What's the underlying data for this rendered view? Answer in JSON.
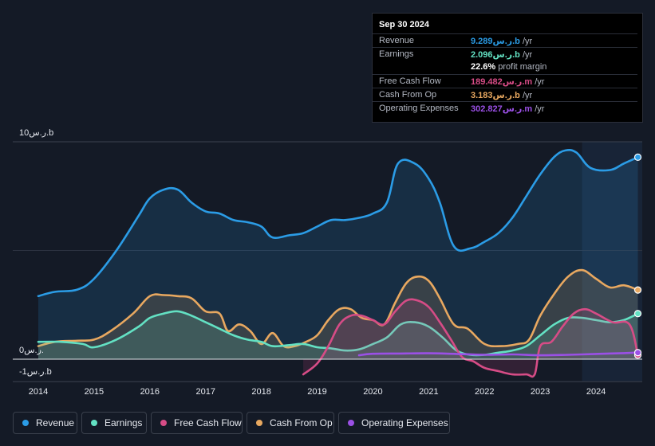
{
  "tooltip": {
    "date": "Sep 30 2024",
    "rows": [
      {
        "label": "Revenue",
        "value": "9.289ر.س.b",
        "unit": " /yr",
        "color": "#2b9ce6"
      },
      {
        "label": "Earnings",
        "value": "2.096ر.س.b",
        "unit": " /yr",
        "color": "#63e1c3"
      },
      {
        "label": "",
        "value": "22.6%",
        "unit": " profit margin",
        "color": "#ffffff"
      },
      {
        "label": "Free Cash Flow",
        "value": "189.482ر.س.m",
        "unit": " /yr",
        "color": "#d64c86"
      },
      {
        "label": "Cash From Op",
        "value": "3.183ر.س.b",
        "unit": " /yr",
        "color": "#e8a860"
      },
      {
        "label": "Operating Expenses",
        "value": "302.827ر.س.m",
        "unit": " /yr",
        "color": "#9b50e6"
      }
    ]
  },
  "legend": [
    {
      "label": "Revenue",
      "color": "#2b9ce6"
    },
    {
      "label": "Earnings",
      "color": "#63e1c3"
    },
    {
      "label": "Free Cash Flow",
      "color": "#d64c86"
    },
    {
      "label": "Cash From Op",
      "color": "#e8a860"
    },
    {
      "label": "Operating Expenses",
      "color": "#9b50e6"
    }
  ],
  "chart_data": {
    "type": "area",
    "ylabel_top": "10ر.س.b",
    "ylabel_zero": "0ر.س.",
    "ylabel_bottom": "-1ر.س.b",
    "ylim": [
      -1,
      10
    ],
    "xlim": [
      2014,
      2024.8
    ],
    "xticks": [
      "2014",
      "2015",
      "2016",
      "2017",
      "2018",
      "2019",
      "2020",
      "2021",
      "2022",
      "2023",
      "2024"
    ],
    "highlight_from": 2023.75,
    "series": [
      {
        "name": "Revenue",
        "color": "#2b9ce6",
        "fill": true,
        "x": [
          2014,
          2014.3,
          2014.7,
          2015,
          2015.4,
          2015.8,
          2016,
          2016.25,
          2016.5,
          2016.75,
          2017,
          2017.25,
          2017.5,
          2017.75,
          2018,
          2018.2,
          2018.5,
          2018.75,
          2019,
          2019.25,
          2019.5,
          2019.75,
          2020,
          2020.25,
          2020.45,
          2020.75,
          2021,
          2021.2,
          2021.45,
          2021.75,
          2022,
          2022.25,
          2022.5,
          2022.75,
          2023,
          2023.25,
          2023.45,
          2023.65,
          2023.9,
          2024.25,
          2024.5,
          2024.75
        ],
        "values": [
          2.9,
          3.1,
          3.2,
          3.7,
          5.0,
          6.6,
          7.4,
          7.8,
          7.8,
          7.2,
          6.8,
          6.7,
          6.4,
          6.3,
          6.1,
          5.6,
          5.7,
          5.8,
          6.1,
          6.4,
          6.4,
          6.5,
          6.7,
          7.2,
          9.0,
          9.0,
          8.3,
          7.2,
          5.2,
          5.1,
          5.4,
          5.8,
          6.5,
          7.5,
          8.5,
          9.3,
          9.6,
          9.5,
          8.8,
          8.7,
          9.0,
          9.289
        ]
      },
      {
        "name": "Cash From Op",
        "color": "#e8a860",
        "fill": true,
        "x": [
          2014,
          2014.3,
          2014.7,
          2015,
          2015.3,
          2015.7,
          2016,
          2016.25,
          2016.5,
          2016.75,
          2017,
          2017.25,
          2017.4,
          2017.6,
          2017.8,
          2018,
          2018.2,
          2018.4,
          2018.6,
          2018.8,
          2019,
          2019.2,
          2019.4,
          2019.6,
          2019.8,
          2020,
          2020.2,
          2020.4,
          2020.6,
          2020.8,
          2021,
          2021.2,
          2021.45,
          2021.7,
          2022,
          2022.3,
          2022.6,
          2022.8,
          2023,
          2023.25,
          2023.5,
          2023.75,
          2024,
          2024.25,
          2024.5,
          2024.75
        ],
        "values": [
          0.6,
          0.8,
          0.85,
          0.9,
          1.3,
          2.1,
          2.9,
          2.95,
          2.9,
          2.8,
          2.2,
          2.1,
          1.3,
          1.6,
          1.3,
          0.7,
          1.2,
          0.6,
          0.6,
          0.8,
          1.1,
          1.8,
          2.3,
          2.3,
          1.9,
          1.8,
          1.6,
          2.6,
          3.5,
          3.8,
          3.6,
          2.8,
          1.6,
          1.4,
          0.7,
          0.6,
          0.7,
          0.9,
          2.0,
          3.0,
          3.8,
          4.1,
          3.7,
          3.3,
          3.4,
          3.183
        ]
      },
      {
        "name": "Earnings",
        "color": "#63e1c3",
        "fill": true,
        "x": [
          2014,
          2014.4,
          2014.8,
          2015,
          2015.4,
          2015.8,
          2016,
          2016.25,
          2016.5,
          2016.75,
          2017,
          2017.25,
          2017.5,
          2017.75,
          2018,
          2018.2,
          2018.5,
          2018.75,
          2019,
          2019.25,
          2019.5,
          2019.75,
          2020,
          2020.25,
          2020.5,
          2020.75,
          2021,
          2021.25,
          2021.5,
          2021.75,
          2022,
          2022.25,
          2022.5,
          2022.75,
          2023,
          2023.25,
          2023.5,
          2023.75,
          2024,
          2024.25,
          2024.5,
          2024.75
        ],
        "values": [
          0.8,
          0.8,
          0.7,
          0.55,
          0.9,
          1.5,
          1.9,
          2.1,
          2.2,
          2.0,
          1.7,
          1.4,
          1.1,
          0.9,
          0.8,
          0.6,
          0.65,
          0.7,
          0.55,
          0.5,
          0.4,
          0.45,
          0.7,
          1.0,
          1.6,
          1.7,
          1.5,
          1.0,
          0.4,
          0.2,
          0.2,
          0.3,
          0.4,
          0.6,
          1.1,
          1.6,
          1.9,
          1.9,
          1.8,
          1.7,
          1.8,
          2.096
        ]
      },
      {
        "name": "Free Cash Flow",
        "color": "#d64c86",
        "fill": true,
        "x": [
          2018.75,
          2019,
          2019.2,
          2019.4,
          2019.6,
          2019.8,
          2020,
          2020.2,
          2020.4,
          2020.6,
          2020.8,
          2021,
          2021.2,
          2021.4,
          2021.6,
          2021.8,
          2022,
          2022.25,
          2022.5,
          2022.75,
          2022.9,
          2023,
          2023.2,
          2023.4,
          2023.6,
          2023.8,
          2024,
          2024.3,
          2024.6,
          2024.75
        ],
        "values": [
          -0.7,
          -0.2,
          0.6,
          1.6,
          2.0,
          2.0,
          1.8,
          1.6,
          2.2,
          2.7,
          2.7,
          2.4,
          1.7,
          0.9,
          0.1,
          -0.1,
          -0.4,
          -0.55,
          -0.7,
          -0.7,
          -0.7,
          0.6,
          0.8,
          1.5,
          2.1,
          2.3,
          2.1,
          1.7,
          1.6,
          0.19
        ]
      },
      {
        "name": "Operating Expenses",
        "color": "#9b50e6",
        "fill": false,
        "x": [
          2019.75,
          2020,
          2020.5,
          2021,
          2021.5,
          2022,
          2022.5,
          2023,
          2023.5,
          2024,
          2024.5,
          2024.75
        ],
        "values": [
          0.18,
          0.25,
          0.26,
          0.27,
          0.24,
          0.2,
          0.22,
          0.18,
          0.2,
          0.24,
          0.28,
          0.303
        ]
      }
    ]
  }
}
